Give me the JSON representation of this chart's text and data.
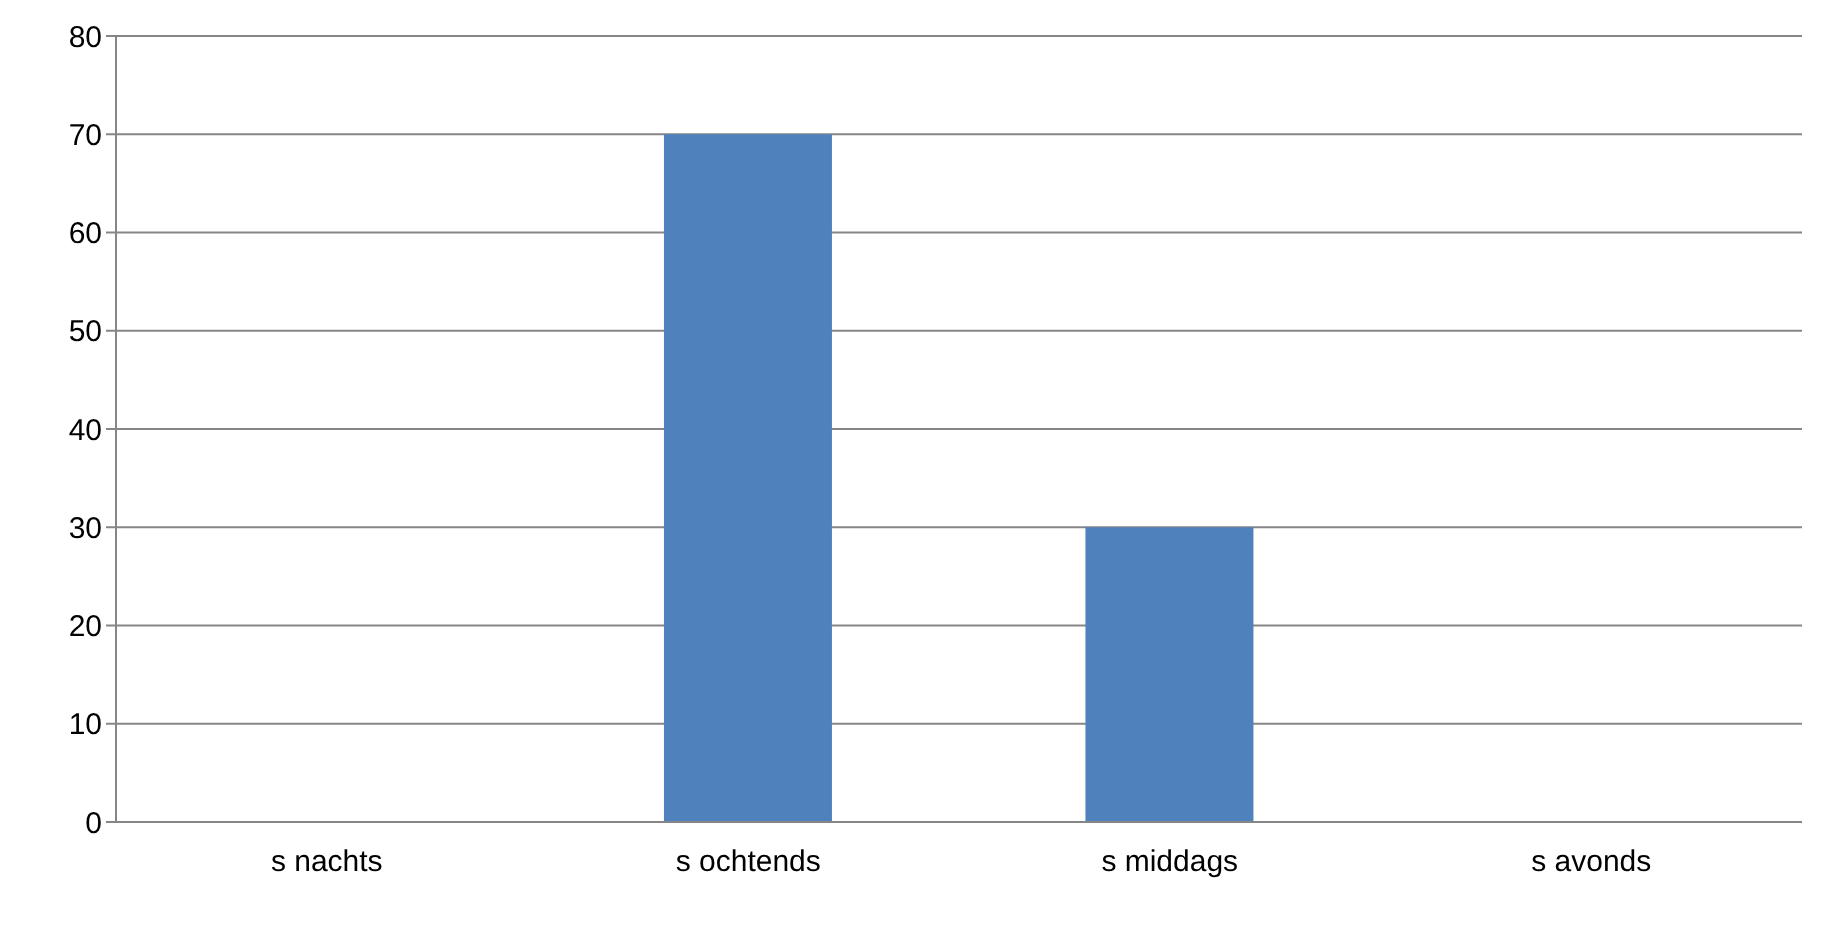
{
  "chart_data": {
    "type": "bar",
    "categories": [
      "s nachts",
      "s ochtends",
      "s middags",
      "s avonds"
    ],
    "values": [
      0,
      70,
      30,
      0
    ],
    "color": "#4f81bd",
    "ylim": [
      0,
      80
    ],
    "yticks": [
      0,
      10,
      20,
      30,
      40,
      50,
      60,
      70,
      80
    ],
    "grid": "y",
    "legend": false
  }
}
